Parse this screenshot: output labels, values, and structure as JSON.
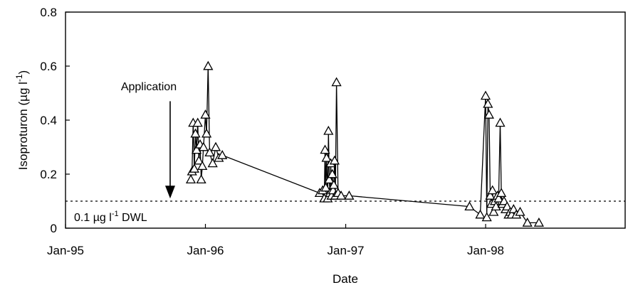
{
  "chart_data": {
    "type": "line",
    "xlabel": "Date",
    "ylabel": "Isoproturon (µg l⁻¹)",
    "ylabel_parts": {
      "main": "Isoproturon (µg l",
      "sup": "-1",
      "close": ")"
    },
    "ylim": [
      0,
      0.8
    ],
    "yticks": [
      "0",
      "0.2",
      "0.4",
      "0.6",
      "0.8"
    ],
    "xlim": [
      "1995-01-01",
      "1998-12-31"
    ],
    "xticks": [
      {
        "date": "1995-01-01",
        "label": "Jan-95"
      },
      {
        "date": "1996-01-01",
        "label": "Jan-96"
      },
      {
        "date": "1997-01-01",
        "label": "Jan-97"
      },
      {
        "date": "1998-01-01",
        "label": "Jan-98"
      }
    ],
    "grid": false,
    "marker": "open-triangle",
    "annotations": {
      "application": {
        "text": "Application",
        "date": "1995-10-01"
      },
      "dwl": {
        "value": 0.1,
        "text_pre": "0.1 µg l",
        "sup": "-1",
        "text_post": " DWL"
      }
    },
    "series": [
      {
        "points": [
          [
            "1995-11-24",
            0.18
          ],
          [
            "1995-11-27",
            0.21
          ],
          [
            "1995-11-30",
            0.39
          ],
          [
            "1995-12-03",
            0.22
          ],
          [
            "1995-12-06",
            0.35
          ],
          [
            "1995-12-09",
            0.29
          ],
          [
            "1995-12-12",
            0.39
          ],
          [
            "1995-12-15",
            0.25
          ],
          [
            "1995-12-18",
            0.31
          ],
          [
            "1995-12-21",
            0.18
          ],
          [
            "1995-12-24",
            0.23
          ],
          [
            "1995-12-27",
            0.3
          ],
          [
            "1996-01-01",
            0.42
          ],
          [
            "1996-01-04",
            0.35
          ],
          [
            "1996-01-08",
            0.6
          ],
          [
            "1996-01-12",
            0.28
          ],
          [
            "1996-01-20",
            0.24
          ],
          [
            "1996-01-28",
            0.3
          ],
          [
            "1996-02-05",
            0.26
          ],
          [
            "1996-02-14",
            0.27
          ],
          [
            "1996-10-25",
            0.13
          ],
          [
            "1996-11-02",
            0.14
          ],
          [
            "1996-11-06",
            0.11
          ],
          [
            "1996-11-08",
            0.29
          ],
          [
            "1996-11-10",
            0.15
          ],
          [
            "1996-11-12",
            0.26
          ],
          [
            "1996-11-15",
            0.11
          ],
          [
            "1996-11-17",
            0.36
          ],
          [
            "1996-11-19",
            0.18
          ],
          [
            "1996-11-21",
            0.13
          ],
          [
            "1996-11-23",
            0.24
          ],
          [
            "1996-11-25",
            0.12
          ],
          [
            "1996-11-27",
            0.2
          ],
          [
            "1996-11-29",
            0.14
          ],
          [
            "1996-12-01",
            0.16
          ],
          [
            "1996-12-03",
            0.25
          ],
          [
            "1996-12-05",
            0.12
          ],
          [
            "1996-12-08",
            0.54
          ],
          [
            "1996-12-12",
            0.13
          ],
          [
            "1996-12-20",
            0.12
          ],
          [
            "1997-01-10",
            0.12
          ],
          [
            "1997-11-20",
            0.08
          ],
          [
            "1997-12-18",
            0.05
          ],
          [
            "1998-01-01",
            0.49
          ],
          [
            "1998-01-04",
            0.04
          ],
          [
            "1998-01-07",
            0.46
          ],
          [
            "1998-01-10",
            0.42
          ],
          [
            "1998-01-13",
            0.12
          ],
          [
            "1998-01-16",
            0.09
          ],
          [
            "1998-01-19",
            0.14
          ],
          [
            "1998-01-22",
            0.06
          ],
          [
            "1998-01-25",
            0.1
          ],
          [
            "1998-01-28",
            0.08
          ],
          [
            "1998-02-01",
            0.12
          ],
          [
            "1998-02-04",
            0.11
          ],
          [
            "1998-02-08",
            0.39
          ],
          [
            "1998-02-11",
            0.13
          ],
          [
            "1998-02-14",
            0.09
          ],
          [
            "1998-02-18",
            0.1
          ],
          [
            "1998-02-22",
            0.07
          ],
          [
            "1998-02-26",
            0.08
          ],
          [
            "1998-03-02",
            0.05
          ],
          [
            "1998-03-06",
            0.06
          ],
          [
            "1998-03-10",
            0.05
          ],
          [
            "1998-03-15",
            0.07
          ],
          [
            "1998-03-22",
            0.05
          ],
          [
            "1998-04-01",
            0.06
          ],
          [
            "1998-04-20",
            0.02
          ],
          [
            "1998-05-20",
            0.02
          ]
        ]
      }
    ]
  }
}
